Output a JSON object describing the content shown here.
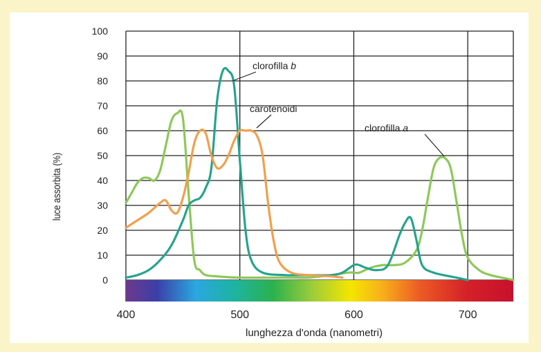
{
  "chart_data": {
    "type": "line",
    "xlabel": "lunghezza d'onda (nanometri)",
    "ylabel": "luce assorbita (%)",
    "xlim": [
      400,
      740
    ],
    "ylim": [
      0,
      100
    ],
    "x_ticks": [
      "400",
      "500",
      "600",
      "700"
    ],
    "y_ticks": [
      "0",
      "10",
      "20",
      "30",
      "40",
      "50",
      "60",
      "70",
      "80",
      "90",
      "100"
    ],
    "grid": true,
    "spectrum_bar": true,
    "series": [
      {
        "name": "clorofilla a",
        "color": "#8dc859",
        "points": [
          [
            400,
            31
          ],
          [
            405,
            35
          ],
          [
            410,
            39
          ],
          [
            415,
            41
          ],
          [
            420,
            41
          ],
          [
            425,
            40
          ],
          [
            430,
            44
          ],
          [
            435,
            54
          ],
          [
            440,
            64
          ],
          [
            445,
            67
          ],
          [
            450,
            65
          ],
          [
            455,
            35
          ],
          [
            460,
            8
          ],
          [
            465,
            4
          ],
          [
            470,
            2
          ],
          [
            480,
            1.5
          ],
          [
            500,
            1
          ],
          [
            540,
            1
          ],
          [
            560,
            1
          ],
          [
            580,
            2
          ],
          [
            595,
            3
          ],
          [
            600,
            3
          ],
          [
            605,
            3
          ],
          [
            615,
            5
          ],
          [
            625,
            6
          ],
          [
            635,
            6
          ],
          [
            645,
            7
          ],
          [
            655,
            12
          ],
          [
            660,
            20
          ],
          [
            665,
            33
          ],
          [
            670,
            45
          ],
          [
            675,
            49
          ],
          [
            680,
            49
          ],
          [
            685,
            45
          ],
          [
            690,
            32
          ],
          [
            695,
            18
          ],
          [
            700,
            9
          ],
          [
            710,
            4
          ],
          [
            720,
            2
          ],
          [
            735,
            0.5
          ],
          [
            740,
            0
          ]
        ]
      },
      {
        "name": "clorofilla b",
        "color": "#26a38e",
        "points": [
          [
            400,
            1
          ],
          [
            410,
            2
          ],
          [
            420,
            4
          ],
          [
            430,
            8
          ],
          [
            440,
            14
          ],
          [
            450,
            24
          ],
          [
            455,
            30
          ],
          [
            460,
            32
          ],
          [
            465,
            33
          ],
          [
            470,
            37
          ],
          [
            475,
            45
          ],
          [
            480,
            72
          ],
          [
            485,
            84
          ],
          [
            490,
            84
          ],
          [
            495,
            78
          ],
          [
            500,
            48
          ],
          [
            505,
            20
          ],
          [
            510,
            8
          ],
          [
            520,
            3
          ],
          [
            540,
            2
          ],
          [
            560,
            2
          ],
          [
            580,
            2
          ],
          [
            590,
            3
          ],
          [
            600,
            6
          ],
          [
            605,
            6
          ],
          [
            610,
            5
          ],
          [
            620,
            4
          ],
          [
            630,
            6
          ],
          [
            640,
            18
          ],
          [
            645,
            23
          ],
          [
            650,
            25
          ],
          [
            655,
            16
          ],
          [
            660,
            6
          ],
          [
            670,
            3
          ],
          [
            690,
            1
          ],
          [
            700,
            0
          ]
        ]
      },
      {
        "name": "carotenoidi",
        "color": "#f0a04c",
        "points": [
          [
            400,
            21
          ],
          [
            410,
            24
          ],
          [
            420,
            27
          ],
          [
            430,
            31
          ],
          [
            435,
            32
          ],
          [
            440,
            28
          ],
          [
            445,
            27
          ],
          [
            450,
            33
          ],
          [
            455,
            43
          ],
          [
            460,
            55
          ],
          [
            465,
            60
          ],
          [
            470,
            59
          ],
          [
            475,
            50
          ],
          [
            480,
            45
          ],
          [
            485,
            46
          ],
          [
            490,
            50
          ],
          [
            495,
            56
          ],
          [
            500,
            60
          ],
          [
            505,
            60
          ],
          [
            510,
            60
          ],
          [
            515,
            58
          ],
          [
            520,
            50
          ],
          [
            525,
            30
          ],
          [
            530,
            15
          ],
          [
            535,
            7
          ],
          [
            545,
            3
          ],
          [
            560,
            2
          ],
          [
            580,
            1.5
          ],
          [
            590,
            1
          ]
        ]
      }
    ]
  },
  "annotations": {
    "chl_b": {
      "text": "clorofilla ",
      "italic": "b"
    },
    "carot": {
      "text": "carotenoidi"
    },
    "chl_a": {
      "text": "clorofilla ",
      "italic": "a"
    }
  }
}
